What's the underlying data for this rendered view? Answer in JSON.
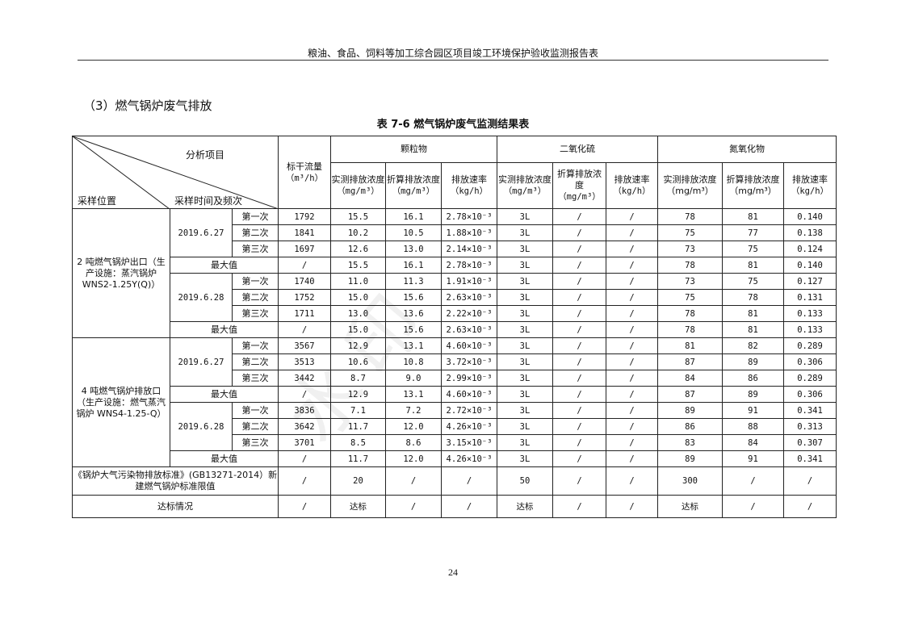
{
  "header": {
    "title": "粮油、食品、饲料等加工综合园区项目竣工环境保护验收监测报告表"
  },
  "section_title": "（3）燃气锅炉废气排放",
  "table_caption": "表 7-6   燃气锅炉废气监测结果表",
  "watermark": "正宏水印",
  "table": {
    "header": {
      "analysis_item": "分析项目",
      "sampling_location": "采样位置",
      "sampling_time": "采样时间及频次",
      "flow": "标干流量",
      "flow_unit": "（m³/h）",
      "pm": "颗粒物",
      "so2": "二氧化硫",
      "nox": "氮氧化物",
      "measured_conc": "实测排放浓度",
      "converted_conc": "折算排放浓度",
      "rate": "排放速率",
      "conc_unit": "（mg/m³）",
      "rate_unit": "（kg/h）",
      "nox_measured": "实测排放浓度（mg/m³）",
      "nox_converted": "折算排放浓度（mg/m³）"
    },
    "groups": [
      {
        "location": "2 吨燃气锅炉出口（生产设施：蒸汽锅炉 WNS2-1.25Y(Q)）",
        "blocks": [
          {
            "date": "2019.6.27",
            "runs": [
              {
                "label": "第一次",
                "values": [
                  "1792",
                  "15.5",
                  "16.1",
                  "2.78×10⁻³",
                  "3L",
                  "/",
                  "/",
                  "78",
                  "81",
                  "0.140"
                ]
              },
              {
                "label": "第二次",
                "values": [
                  "1841",
                  "10.2",
                  "10.5",
                  "1.88×10⁻³",
                  "3L",
                  "/",
                  "/",
                  "75",
                  "77",
                  "0.138"
                ]
              },
              {
                "label": "第三次",
                "values": [
                  "1697",
                  "12.6",
                  "13.0",
                  "2.14×10⁻³",
                  "3L",
                  "/",
                  "/",
                  "73",
                  "75",
                  "0.124"
                ]
              }
            ],
            "max": {
              "label": "最大值",
              "values": [
                "/",
                "15.5",
                "16.1",
                "2.78×10⁻³",
                "3L",
                "/",
                "/",
                "78",
                "81",
                "0.140"
              ]
            }
          },
          {
            "date": "2019.6.28",
            "runs": [
              {
                "label": "第一次",
                "values": [
                  "1740",
                  "11.0",
                  "11.3",
                  "1.91×10⁻³",
                  "3L",
                  "/",
                  "/",
                  "73",
                  "75",
                  "0.127"
                ]
              },
              {
                "label": "第二次",
                "values": [
                  "1752",
                  "15.0",
                  "15.6",
                  "2.63×10⁻³",
                  "3L",
                  "/",
                  "/",
                  "75",
                  "78",
                  "0.131"
                ]
              },
              {
                "label": "第三次",
                "values": [
                  "1711",
                  "13.0",
                  "13.6",
                  "2.22×10⁻³",
                  "3L",
                  "/",
                  "/",
                  "78",
                  "81",
                  "0.133"
                ]
              }
            ],
            "max": {
              "label": "最大值",
              "values": [
                "/",
                "15.0",
                "15.6",
                "2.63×10⁻³",
                "3L",
                "/",
                "/",
                "78",
                "81",
                "0.133"
              ]
            }
          }
        ]
      },
      {
        "location": "4 吨燃气锅炉排放口（生产设施：燃气蒸汽锅炉 WNS4-1.25-Q）",
        "blocks": [
          {
            "date": "2019.6.27",
            "runs": [
              {
                "label": "第一次",
                "values": [
                  "3567",
                  "12.9",
                  "13.1",
                  "4.60×10⁻³",
                  "3L",
                  "/",
                  "/",
                  "81",
                  "82",
                  "0.289"
                ]
              },
              {
                "label": "第二次",
                "values": [
                  "3513",
                  "10.6",
                  "10.8",
                  "3.72×10⁻³",
                  "3L",
                  "/",
                  "/",
                  "87",
                  "89",
                  "0.306"
                ]
              },
              {
                "label": "第三次",
                "values": [
                  "3442",
                  "8.7",
                  "9.0",
                  "2.99×10⁻³",
                  "3L",
                  "/",
                  "/",
                  "84",
                  "86",
                  "0.289"
                ]
              }
            ],
            "max": {
              "label": "最大值",
              "values": [
                "/",
                "12.9",
                "13.1",
                "4.60×10⁻³",
                "3L",
                "/",
                "/",
                "87",
                "89",
                "0.306"
              ]
            }
          },
          {
            "date": "2019.6.28",
            "runs": [
              {
                "label": "第一次",
                "values": [
                  "3836",
                  "7.1",
                  "7.2",
                  "2.72×10⁻³",
                  "3L",
                  "/",
                  "/",
                  "89",
                  "91",
                  "0.341"
                ]
              },
              {
                "label": "第二次",
                "values": [
                  "3642",
                  "11.7",
                  "12.0",
                  "4.26×10⁻³",
                  "3L",
                  "/",
                  "/",
                  "86",
                  "88",
                  "0.313"
                ]
              },
              {
                "label": "第三次",
                "values": [
                  "3701",
                  "8.5",
                  "8.6",
                  "3.15×10⁻³",
                  "3L",
                  "/",
                  "/",
                  "83",
                  "84",
                  "0.307"
                ]
              }
            ],
            "max": {
              "label": "最大值",
              "values": [
                "/",
                "11.7",
                "12.0",
                "4.26×10⁻³",
                "3L",
                "/",
                "/",
                "89",
                "91",
                "0.341"
              ]
            }
          }
        ]
      }
    ],
    "standard": {
      "label": "《锅炉大气污染物排放标准》(GB13271-2014）新建燃气锅炉标准限值",
      "values": [
        "/",
        "20",
        "/",
        "/",
        "50",
        "/",
        "/",
        "300",
        "/",
        "/"
      ]
    },
    "compliance": {
      "label": "达标情况",
      "values": [
        "/",
        "达标",
        "/",
        "/",
        "达标",
        "/",
        "/",
        "达标",
        "/",
        "/"
      ]
    }
  },
  "page_number": "24"
}
